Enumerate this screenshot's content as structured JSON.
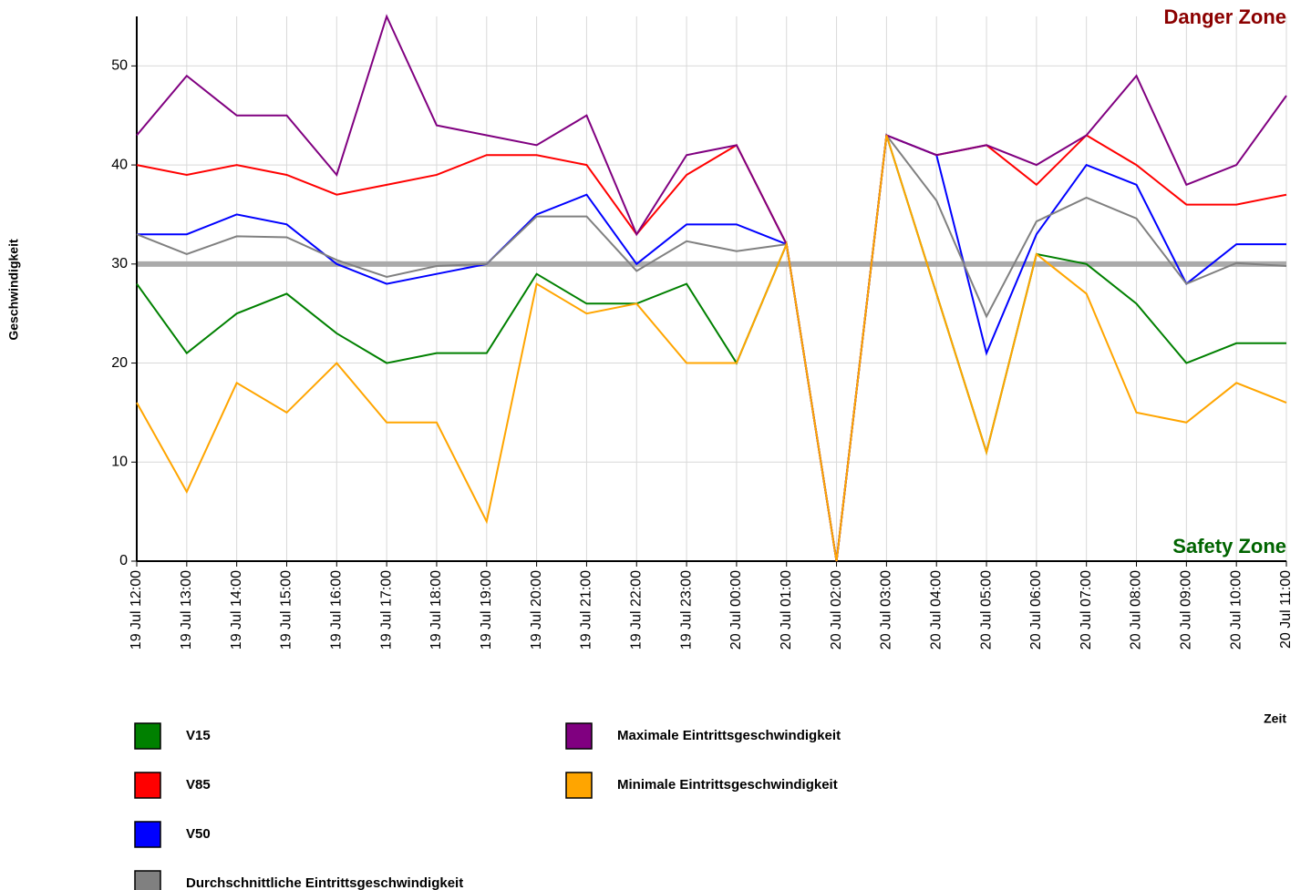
{
  "chart_data": {
    "type": "line",
    "categories": [
      "19 Jul 12:00",
      "19 Jul 13:00",
      "19 Jul 14:00",
      "19 Jul 15:00",
      "19 Jul 16:00",
      "19 Jul 17:00",
      "19 Jul 18:00",
      "19 Jul 19:00",
      "19 Jul 20:00",
      "19 Jul 21:00",
      "19 Jul 22:00",
      "19 Jul 23:00",
      "20 Jul 00:00",
      "20 Jul 01:00",
      "20 Jul 02:00",
      "20 Jul 03:00",
      "20 Jul 04:00",
      "20 Jul 05:00",
      "20 Jul 06:00",
      "20 Jul 07:00",
      "20 Jul 08:00",
      "20 Jul 09:00",
      "20 Jul 10:00",
      "20 Jul 11:00"
    ],
    "series": [
      {
        "name": "V15",
        "color": "#008000",
        "values": [
          28,
          21,
          25,
          27,
          23,
          20,
          21,
          21,
          29,
          26,
          26,
          28,
          20,
          32,
          0,
          43,
          27,
          11,
          31,
          30,
          26,
          20,
          22,
          22
        ]
      },
      {
        "name": "V85",
        "color": "#ff0000",
        "values": [
          40,
          39,
          40,
          39,
          37,
          38,
          39,
          41,
          41,
          40,
          33,
          39,
          42,
          32,
          0,
          43,
          41,
          42,
          38,
          43,
          40,
          36,
          36,
          37
        ]
      },
      {
        "name": "V50",
        "color": "#0000ff",
        "values": [
          33,
          33,
          35,
          34,
          30,
          28,
          29,
          30,
          35,
          37,
          30,
          34,
          34,
          32,
          0,
          43,
          41,
          21,
          33,
          40,
          38,
          28,
          32,
          32
        ]
      },
      {
        "name": "Durchschnittliche Eintrittsgeschwindigkeit",
        "color": "#808080",
        "values": [
          33,
          31,
          32.8,
          32.7,
          30.4,
          28.7,
          29.8,
          30,
          34.8,
          34.8,
          29.3,
          32.3,
          31.3,
          32,
          0,
          43,
          36.4,
          24.7,
          34.3,
          36.7,
          34.6,
          28,
          30.1,
          29.8
        ]
      },
      {
        "name": "Maximale Eintrittsgeschwindigkeit",
        "color": "#800080",
        "values": [
          43,
          49,
          45,
          45,
          39,
          55,
          44,
          43,
          42,
          45,
          33,
          41,
          42,
          32,
          0,
          43,
          41,
          42,
          40,
          43,
          49,
          38,
          40,
          47
        ]
      },
      {
        "name": "Minimale Eintrittsgeschwindigkeit",
        "color": "#ffa500",
        "values": [
          16,
          7,
          18,
          15,
          20,
          14,
          14,
          4,
          28,
          25,
          26,
          20,
          20,
          32,
          0,
          43,
          27,
          11,
          31,
          27,
          15,
          14,
          18,
          16
        ]
      }
    ],
    "reference_line": 30,
    "reference_color": "#aaaaaa",
    "ylim": [
      0,
      55
    ],
    "yticks": [
      0,
      10,
      20,
      30,
      40,
      50
    ],
    "grid": true,
    "y_label": "Geschwindigkeit",
    "x_label": "Zeit",
    "annotations": [
      {
        "text": "Danger Zone",
        "color": "#8b0000"
      },
      {
        "text": "Safety Zone",
        "color": "#006400"
      }
    ]
  }
}
